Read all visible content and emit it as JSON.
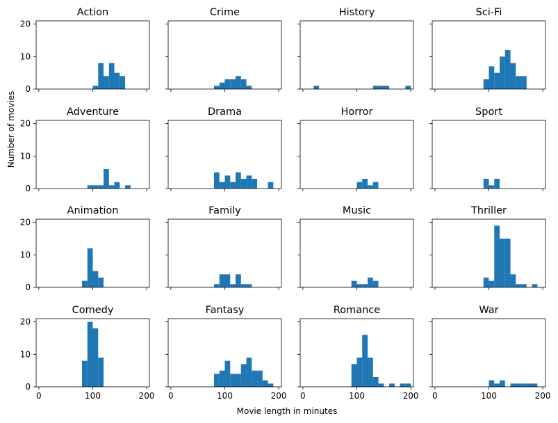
{
  "figure": {
    "xlabel": "Movie length in minutes",
    "ylabel": "Number of movies",
    "bar_color": "#1f77b4"
  },
  "chart_data": {
    "type": "bar",
    "layout": "4x4 grid of histograms, shared axes",
    "xlim": [
      -5,
      205
    ],
    "ylim": [
      0,
      21
    ],
    "xticks": [
      0,
      100,
      200
    ],
    "yticks": [
      0,
      10,
      20
    ],
    "bin_width": 10,
    "panels": [
      {
        "title": "Action",
        "bins": [
          [
            100,
            1
          ],
          [
            110,
            8
          ],
          [
            120,
            4
          ],
          [
            130,
            8
          ],
          [
            140,
            5
          ],
          [
            150,
            4
          ]
        ]
      },
      {
        "title": "Crime",
        "bins": [
          [
            80,
            1
          ],
          [
            90,
            2
          ],
          [
            100,
            3
          ],
          [
            110,
            3
          ],
          [
            120,
            4
          ],
          [
            130,
            3
          ],
          [
            140,
            1
          ]
        ]
      },
      {
        "title": "History",
        "bins": [
          [
            20,
            1
          ],
          [
            130,
            1
          ],
          [
            140,
            1
          ],
          [
            150,
            1
          ],
          [
            190,
            1
          ]
        ]
      },
      {
        "title": "Sci-Fi",
        "bins": [
          [
            90,
            3
          ],
          [
            100,
            7
          ],
          [
            110,
            5
          ],
          [
            120,
            10
          ],
          [
            130,
            12
          ],
          [
            140,
            8
          ],
          [
            150,
            4
          ],
          [
            160,
            4
          ]
        ]
      },
      {
        "title": "Adventure",
        "bins": [
          [
            90,
            1
          ],
          [
            100,
            1
          ],
          [
            110,
            1
          ],
          [
            120,
            6
          ],
          [
            130,
            1
          ],
          [
            140,
            2
          ],
          [
            160,
            1
          ]
        ]
      },
      {
        "title": "Drama",
        "bins": [
          [
            80,
            5
          ],
          [
            90,
            2
          ],
          [
            100,
            4
          ],
          [
            110,
            2
          ],
          [
            120,
            5
          ],
          [
            130,
            3
          ],
          [
            140,
            4
          ],
          [
            150,
            3
          ],
          [
            180,
            2
          ]
        ]
      },
      {
        "title": "Horror",
        "bins": [
          [
            100,
            2
          ],
          [
            110,
            3
          ],
          [
            120,
            1
          ],
          [
            130,
            2
          ]
        ]
      },
      {
        "title": "Sport",
        "bins": [
          [
            90,
            3
          ],
          [
            100,
            1
          ],
          [
            110,
            3
          ]
        ]
      },
      {
        "title": "Animation",
        "bins": [
          [
            80,
            2
          ],
          [
            90,
            12
          ],
          [
            100,
            5
          ],
          [
            110,
            3
          ]
        ]
      },
      {
        "title": "Family",
        "bins": [
          [
            80,
            1
          ],
          [
            90,
            4
          ],
          [
            100,
            4
          ],
          [
            110,
            1
          ],
          [
            120,
            4
          ],
          [
            130,
            1
          ],
          [
            140,
            1
          ]
        ]
      },
      {
        "title": "Music",
        "bins": [
          [
            90,
            2
          ],
          [
            100,
            1
          ],
          [
            110,
            1
          ],
          [
            120,
            3
          ],
          [
            130,
            2
          ]
        ]
      },
      {
        "title": "Thriller",
        "bins": [
          [
            90,
            3
          ],
          [
            100,
            2
          ],
          [
            110,
            19
          ],
          [
            120,
            15
          ],
          [
            130,
            15
          ],
          [
            140,
            4
          ],
          [
            150,
            1
          ],
          [
            160,
            1
          ],
          [
            180,
            1
          ]
        ]
      },
      {
        "title": "Comedy",
        "bins": [
          [
            80,
            8
          ],
          [
            90,
            20
          ],
          [
            100,
            18
          ],
          [
            110,
            9
          ]
        ]
      },
      {
        "title": "Fantasy",
        "bins": [
          [
            80,
            4
          ],
          [
            90,
            5
          ],
          [
            100,
            8
          ],
          [
            110,
            4
          ],
          [
            120,
            4
          ],
          [
            130,
            7
          ],
          [
            140,
            9
          ],
          [
            150,
            5
          ],
          [
            160,
            5
          ],
          [
            170,
            2
          ],
          [
            180,
            1
          ]
        ]
      },
      {
        "title": "Romance",
        "bins": [
          [
            90,
            7
          ],
          [
            100,
            9
          ],
          [
            110,
            16
          ],
          [
            120,
            9
          ],
          [
            130,
            3
          ],
          [
            140,
            1
          ],
          [
            160,
            1
          ],
          [
            180,
            1
          ],
          [
            190,
            1
          ]
        ]
      },
      {
        "title": "War",
        "bins": [
          [
            100,
            2
          ],
          [
            110,
            1
          ],
          [
            120,
            2
          ],
          [
            140,
            1
          ],
          [
            150,
            1
          ],
          [
            160,
            1
          ],
          [
            170,
            1
          ],
          [
            180,
            1
          ]
        ]
      }
    ]
  }
}
